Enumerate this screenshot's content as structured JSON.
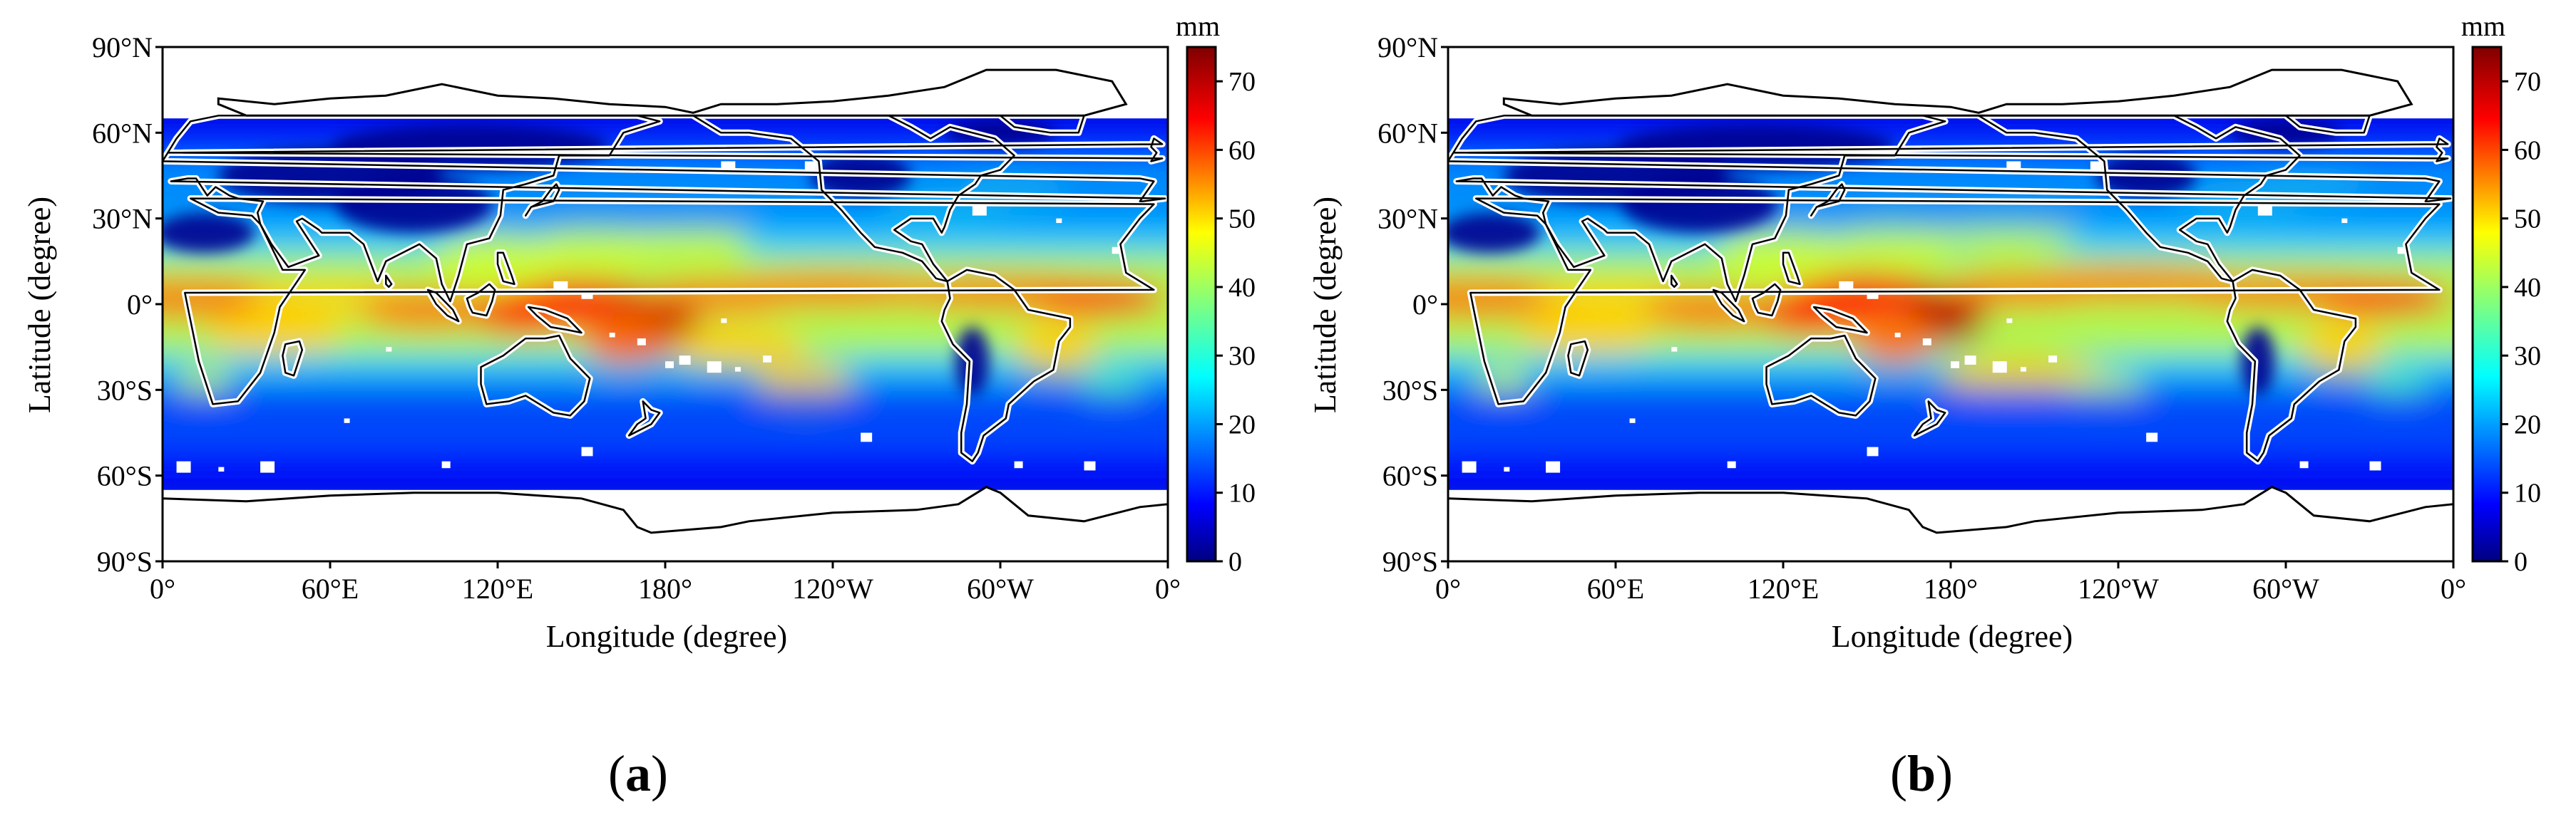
{
  "figure": {
    "panels": [
      {
        "caption_open": "(",
        "caption_letter": "a",
        "caption_close": ")",
        "x_axis_label": "Longitude (degree)",
        "y_axis_label": "Latitude (degree)",
        "x_tick_labels": [
          "0°",
          "60°E",
          "120°E",
          "180°",
          "120°W",
          "60°W",
          "0°"
        ],
        "y_tick_labels": [
          "90°N",
          "60°N",
          "30°N",
          "0°",
          "30°S",
          "60°S",
          "90°S"
        ],
        "colorbar": {
          "unit": "mm",
          "tick_labels": [
            "0",
            "10",
            "20",
            "30",
            "40",
            "50",
            "60",
            "70"
          ],
          "range": [
            0,
            75
          ],
          "colormap": "jet"
        },
        "data_extent": {
          "lat_min": -65,
          "lat_max": 65,
          "lon_min": 0,
          "lon_max": 360
        }
      },
      {
        "caption_open": "(",
        "caption_letter": "b",
        "caption_close": ")",
        "x_axis_label": "Longitude (degree)",
        "y_axis_label": "Latitude (degree)",
        "x_tick_labels": [
          "0°",
          "60°E",
          "120°E",
          "180°",
          "120°W",
          "60°W",
          "0°"
        ],
        "y_tick_labels": [
          "90°N",
          "60°N",
          "30°N",
          "0°",
          "30°S",
          "60°S",
          "90°S"
        ],
        "colorbar": {
          "unit": "mm",
          "tick_labels": [
            "0",
            "10",
            "20",
            "30",
            "40",
            "50",
            "60",
            "70"
          ],
          "range": [
            0,
            75
          ],
          "colormap": "jet"
        },
        "data_extent": {
          "lat_min": -65,
          "lat_max": 65,
          "lon_min": 0,
          "lon_max": 360
        }
      }
    ],
    "colors": {
      "jet_0": "#00007f",
      "jet_1": "#0000ff",
      "jet_2": "#007fff",
      "jet_3": "#00ffff",
      "jet_4": "#7fff7f",
      "jet_5": "#ffff00",
      "jet_6": "#ff7f00",
      "jet_7": "#ff0000",
      "jet_8": "#7f0000"
    }
  }
}
